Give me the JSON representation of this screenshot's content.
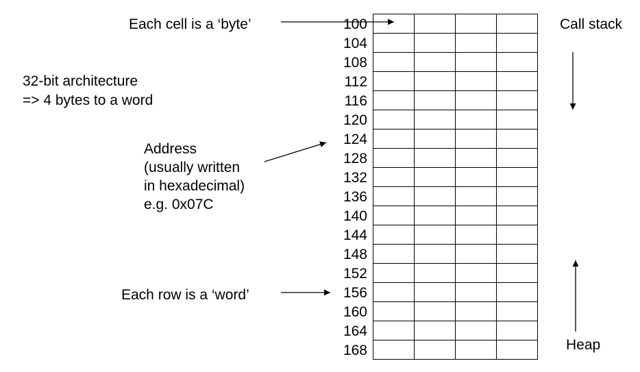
{
  "labels": {
    "cell_is_byte": "Each cell is a ‘byte’",
    "arch_line1": "32-bit architecture",
    "arch_line2": "=> 4 bytes to a word",
    "address_line1": "Address",
    "address_line2": "(usually written",
    "address_line3": "in hexadecimal)",
    "address_line4": "e.g. 0x07C",
    "row_is_word": "Each row is a ‘word’",
    "call_stack": "Call stack",
    "heap": "Heap"
  },
  "memory": {
    "addresses": [
      "100",
      "104",
      "108",
      "112",
      "116",
      "120",
      "124",
      "128",
      "132",
      "136",
      "140",
      "144",
      "148",
      "152",
      "156",
      "160",
      "164",
      "168"
    ],
    "bytes_per_word": 4
  },
  "colors": {
    "line": "#000000",
    "background": "#ffffff"
  }
}
